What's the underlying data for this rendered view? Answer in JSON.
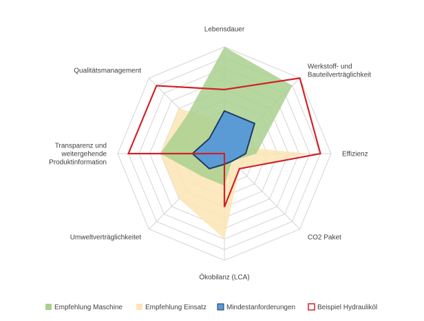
{
  "chart_data": {
    "type": "radar",
    "axes": [
      "Lebensdauer",
      "Werkstoff- und Bauteilverträglichkeit",
      "Effizienz",
      "CO2 Paket",
      "Ökobilanz (LCA)",
      "Umweltverträglichkeitet",
      "Transparenz und weitergehende Produktinformation",
      "Qualitätsmanagement"
    ],
    "axis_label_lines": [
      [
        "Lebensdauer"
      ],
      [
        "Werkstoff- und",
        "Bauteilverträglichkeit"
      ],
      [
        "Effizienz"
      ],
      [
        "CO2 Paket"
      ],
      [
        "Ökobilanz (LCA)"
      ],
      [
        "Umweltverträglichkeitet"
      ],
      [
        "Transparenz und",
        "weitergehende",
        "Produktinformation"
      ],
      [
        "Qualitätsmanagement"
      ]
    ],
    "range": [
      0,
      10
    ],
    "rings": 10,
    "grid": true,
    "legend_position": "bottom",
    "series": [
      {
        "name": "Empfehlung Einsatz",
        "style": "fill",
        "color": "#fde5b5",
        "values": [
          3,
          1,
          8,
          2,
          8,
          6,
          6,
          6
        ]
      },
      {
        "name": "Empfehlung Maschine",
        "style": "fill",
        "color": "#a9d08e",
        "values": [
          10,
          9,
          3,
          1,
          3,
          3,
          6,
          5
        ]
      },
      {
        "name": "Mindestanforderungen",
        "style": "fill-outline",
        "color": "#5b9bd5",
        "outline": "#1f3864",
        "values": [
          4,
          4,
          2,
          1,
          1,
          2,
          3,
          2
        ]
      },
      {
        "name": "Beispiel Hydrauliköl",
        "style": "outline",
        "color": "#d22027",
        "values": [
          6,
          10,
          9,
          2,
          5,
          0,
          9,
          9
        ]
      }
    ],
    "legend_order": [
      "Empfehlung Maschine",
      "Empfehlung Einsatz",
      "Mindestanforderungen",
      "Beispiel Hydrauliköl"
    ]
  }
}
